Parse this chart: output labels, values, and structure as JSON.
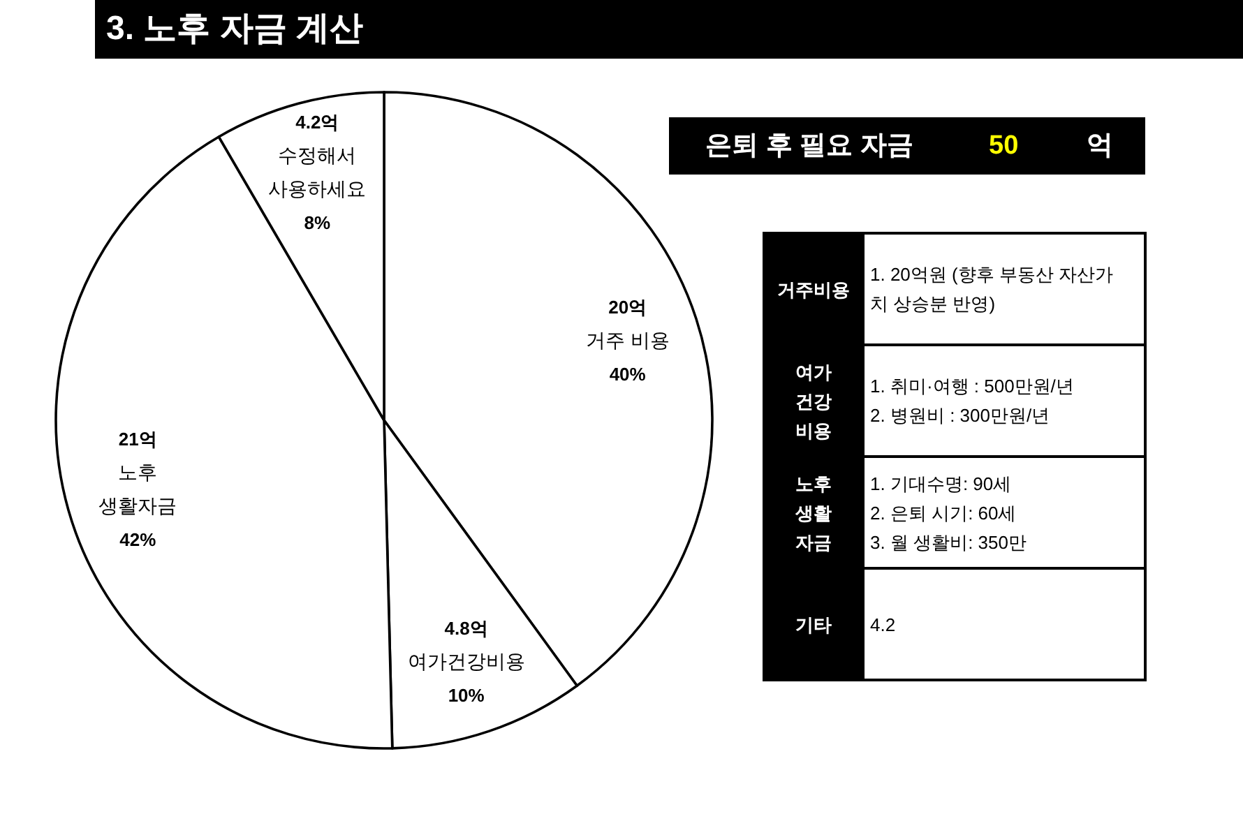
{
  "chart_data": [
    {
      "type": "pie",
      "title": "3. 노후 자금 계산",
      "categories": [
        "거주 비용",
        "여가건강비용",
        "노후\n생활자금",
        "수정해서\n사용하세요"
      ],
      "values": [
        20,
        4.8,
        21,
        4.2
      ],
      "value_labels": [
        "20억",
        "4.8억",
        "21억",
        "4.2억"
      ],
      "annotations": [
        "40%",
        "10%",
        "42%",
        "8%"
      ],
      "colors": [
        "#ffffff",
        "#ffffff",
        "#ffffff",
        "#ffffff"
      ]
    },
    {
      "type": "other",
      "title": "은퇴 후 필요 자금",
      "annotations": [
        "50",
        "억"
      ],
      "colors": [
        "#ffff00",
        "#ffffff"
      ]
    },
    {
      "type": "other",
      "categories": [
        "거주비용",
        "여가\n건강\n비용",
        "노후\n생활\n자금",
        "기타"
      ],
      "annotations": [
        "1. 20억원 (향후 부동산 자산가치 상승분 반영)",
        "1. 취미·여행 : 500만원/년\n2. 병원비 : 300만원/년",
        "1. 기대수명: 90세\n2. 은퇴 시기: 60세\n3. 월 생활비: 350만",
        "4.2"
      ]
    }
  ]
}
